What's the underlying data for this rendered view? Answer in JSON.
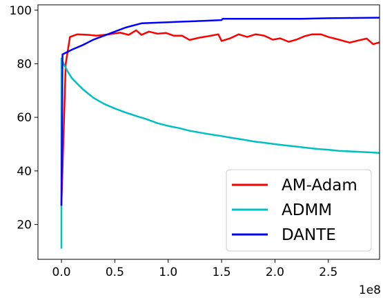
{
  "chart_data": {
    "type": "line",
    "title": "",
    "xlabel": "",
    "ylabel": "",
    "x_offset_label": "1e8",
    "xlim": [
      -0.22,
      2.98
    ],
    "ylim": [
      7,
      102
    ],
    "x_ticks": [
      0.0,
      0.5,
      1.0,
      1.5,
      2.0,
      2.5
    ],
    "x_tick_labels": [
      "0.0",
      "0.5",
      "1.0",
      "1.5",
      "2.0",
      "2.5"
    ],
    "y_ticks": [
      20,
      40,
      60,
      80,
      100
    ],
    "y_tick_labels": [
      "20",
      "40",
      "60",
      "80",
      "100"
    ],
    "grid": false,
    "legend_position": "lower-right",
    "series": [
      {
        "name": "AM-Adam",
        "color": "#ff0000",
        "points": [
          [
            0.0,
            27
          ],
          [
            0.04,
            80
          ],
          [
            0.08,
            90
          ],
          [
            0.15,
            91
          ],
          [
            0.25,
            90.8
          ],
          [
            0.33,
            90.5
          ],
          [
            0.45,
            91
          ],
          [
            0.55,
            91.6
          ],
          [
            0.63,
            90.8
          ],
          [
            0.7,
            92.5
          ],
          [
            0.75,
            90.8
          ],
          [
            0.82,
            92
          ],
          [
            0.9,
            91.2
          ],
          [
            0.98,
            91.5
          ],
          [
            1.05,
            90.5
          ],
          [
            1.13,
            90.5
          ],
          [
            1.2,
            88.9
          ],
          [
            1.3,
            89.8
          ],
          [
            1.38,
            90.3
          ],
          [
            1.47,
            91
          ],
          [
            1.5,
            88.5
          ],
          [
            1.58,
            89.5
          ],
          [
            1.66,
            91
          ],
          [
            1.74,
            90
          ],
          [
            1.82,
            91
          ],
          [
            1.9,
            90.5
          ],
          [
            1.98,
            89
          ],
          [
            2.05,
            89.5
          ],
          [
            2.13,
            88.2
          ],
          [
            2.2,
            89
          ],
          [
            2.28,
            90.3
          ],
          [
            2.35,
            91
          ],
          [
            2.43,
            91
          ],
          [
            2.5,
            90
          ],
          [
            2.6,
            89
          ],
          [
            2.7,
            87.9
          ],
          [
            2.78,
            88.7
          ],
          [
            2.86,
            89.4
          ],
          [
            2.92,
            87.3
          ],
          [
            2.98,
            88
          ]
        ]
      },
      {
        "name": "ADMM",
        "color": "#00bfbf",
        "points": [
          [
            0.0,
            11
          ],
          [
            0.0,
            82
          ],
          [
            0.02,
            80
          ],
          [
            0.06,
            77
          ],
          [
            0.1,
            74.5
          ],
          [
            0.15,
            72.5
          ],
          [
            0.2,
            70.5
          ],
          [
            0.3,
            67.3
          ],
          [
            0.4,
            65
          ],
          [
            0.5,
            63.3
          ],
          [
            0.6,
            61.8
          ],
          [
            0.7,
            60.5
          ],
          [
            0.8,
            59.3
          ],
          [
            0.9,
            57.8
          ],
          [
            1.0,
            56.8
          ],
          [
            1.1,
            56
          ],
          [
            1.2,
            55
          ],
          [
            1.3,
            54.3
          ],
          [
            1.4,
            53.6
          ],
          [
            1.5,
            53
          ],
          [
            1.6,
            52.3
          ],
          [
            1.7,
            51.7
          ],
          [
            1.8,
            51
          ],
          [
            1.9,
            50.5
          ],
          [
            2.0,
            50
          ],
          [
            2.1,
            49.5
          ],
          [
            2.2,
            49.1
          ],
          [
            2.3,
            48.6
          ],
          [
            2.4,
            48.2
          ],
          [
            2.5,
            47.9
          ],
          [
            2.6,
            47.5
          ],
          [
            2.7,
            47.3
          ],
          [
            2.8,
            47.1
          ],
          [
            2.9,
            46.9
          ],
          [
            2.98,
            46.7
          ]
        ]
      },
      {
        "name": "DANTE",
        "color": "#0000ff",
        "points": [
          [
            0.0,
            27
          ],
          [
            0.01,
            83.5
          ],
          [
            0.05,
            84.3
          ],
          [
            0.1,
            85.3
          ],
          [
            0.2,
            87
          ],
          [
            0.3,
            89
          ],
          [
            0.4,
            90.5
          ],
          [
            0.5,
            92
          ],
          [
            0.6,
            93.5
          ],
          [
            0.75,
            95.1
          ],
          [
            1.0,
            95.5
          ],
          [
            1.25,
            95.9
          ],
          [
            1.5,
            96.3
          ],
          [
            1.51,
            96.8
          ],
          [
            1.75,
            96.8
          ],
          [
            2.0,
            96.8
          ],
          [
            2.25,
            96.8
          ],
          [
            2.5,
            97.0
          ],
          [
            2.75,
            97.1
          ],
          [
            2.98,
            97.2
          ]
        ]
      }
    ]
  }
}
